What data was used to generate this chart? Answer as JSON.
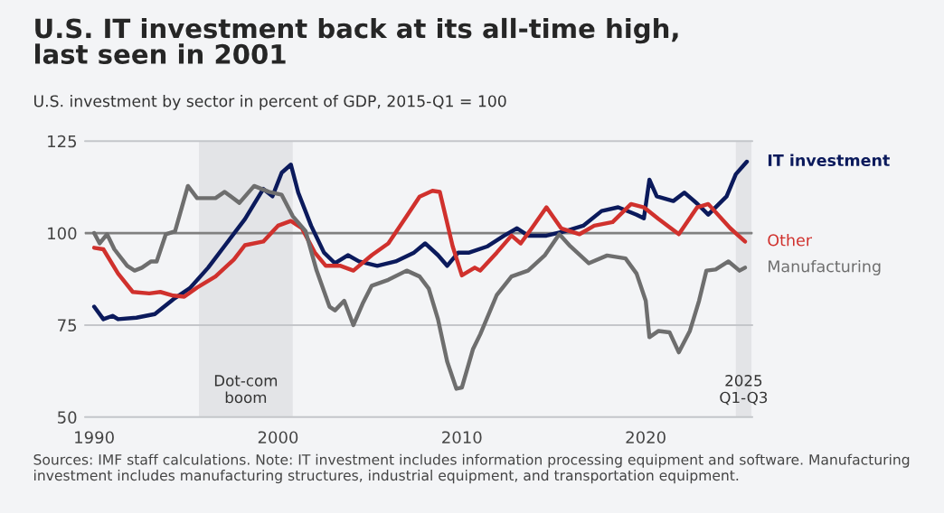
{
  "chart_data": {
    "type": "line",
    "title": "U.S. IT investment back at its all-time high,\nlast seen in 2001",
    "subtitle": "U.S. investment by sector in percent of GDP, 2015-Q1 = 100",
    "series": [
      {
        "name": "IT investment",
        "color": "#0b1a5c",
        "x": [
          1990,
          1990.5,
          1991,
          1991.3,
          1992.3,
          1993.3,
          1994.3,
          1995.2,
          1996.2,
          1997.2,
          1998.2,
          1999.2,
          1999.7,
          2000.2,
          2000.7,
          2001.1,
          2001.8,
          2002.5,
          2003.1,
          2003.8,
          2004.4,
          2005.4,
          2006.4,
          2007.4,
          2008,
          2008.7,
          2009.2,
          2009.8,
          2010.4,
          2011.4,
          2012.3,
          2013,
          2013.6,
          2014.6,
          2015.6,
          2016.6,
          2017.6,
          2018.5,
          2019.5,
          2019.9,
          2020.2,
          2020.6,
          2021.5,
          2022.1,
          2022.8,
          2023.4,
          2024.4,
          2024.9,
          2025.5
        ],
        "values": [
          80,
          76.6,
          77.5,
          76.6,
          77,
          78,
          82,
          85,
          90.6,
          97.2,
          103.8,
          112,
          110,
          116.4,
          118.6,
          111,
          102,
          94.7,
          91.8,
          94,
          92.3,
          91.1,
          92.3,
          94.7,
          97.2,
          94,
          91.1,
          94.7,
          94.7,
          96.4,
          99.3,
          101.3,
          99.3,
          99.3,
          100.5,
          102,
          106,
          107,
          105,
          104,
          114.5,
          110,
          108.7,
          111,
          108,
          105,
          110,
          116,
          119.4
        ]
      },
      {
        "name": "Other",
        "color": "#d0312d",
        "x": [
          1990,
          1990.5,
          1991.3,
          1992.1,
          1993,
          1993.6,
          1994.3,
          1994.9,
          1995.6,
          1996.6,
          1997.6,
          1998.2,
          1999.2,
          2000,
          2000.7,
          2001.3,
          2002,
          2002.6,
          2003.4,
          2004.1,
          2005.1,
          2006,
          2007,
          2007.7,
          2008.4,
          2008.8,
          2009.5,
          2010,
          2010.7,
          2011,
          2011.9,
          2012.7,
          2013.2,
          2013.8,
          2014.6,
          2015.4,
          2016.4,
          2017.2,
          2018.2,
          2019.2,
          2019.9,
          2020.7,
          2021.8,
          2022.8,
          2023.4,
          2024.6,
          2025.4
        ],
        "values": [
          96,
          95.6,
          89,
          84,
          83.6,
          84,
          83,
          82.7,
          85.2,
          88.2,
          92.8,
          96.7,
          97.7,
          102,
          103.3,
          101.3,
          94.7,
          91.1,
          91.1,
          89.8,
          94,
          97.2,
          104.6,
          109.9,
          111.5,
          111.2,
          96.4,
          88.5,
          90.6,
          89.8,
          94.7,
          99.3,
          97.2,
          101.3,
          107,
          101.3,
          99.7,
          102,
          103,
          107.9,
          107,
          103.8,
          99.7,
          107,
          107.9,
          101.3,
          97.7
        ]
      },
      {
        "name": "Manufacturing",
        "color": "#6e6e6e",
        "x": [
          1990,
          1990.3,
          1990.7,
          1991.1,
          1991.8,
          1992.2,
          1992.6,
          1993.1,
          1993.4,
          1993.9,
          1994.4,
          1995.1,
          1995.6,
          1996.6,
          1997.1,
          1997.9,
          1998.7,
          1999.5,
          2000.2,
          2000.8,
          2001.5,
          2002.1,
          2002.8,
          2003.1,
          2003.6,
          2004.1,
          2004.6,
          2005.1,
          2006,
          2007,
          2007.7,
          2008.2,
          2008.7,
          2009.2,
          2009.7,
          2010,
          2010.6,
          2011,
          2011.9,
          2012.7,
          2013.6,
          2014.5,
          2015.3,
          2015.9,
          2016.9,
          2017.9,
          2018.9,
          2019.5,
          2020,
          2020.2,
          2020.7,
          2021.3,
          2021.8,
          2022.4,
          2022.9,
          2023.3,
          2023.8,
          2024.5,
          2025.1,
          2025.4
        ],
        "values": [
          100,
          97.2,
          99.7,
          95.6,
          91.1,
          89.8,
          90.6,
          92.3,
          92.3,
          99.7,
          100.5,
          112.8,
          109.5,
          109.5,
          111.2,
          108.2,
          112.8,
          111.2,
          110.4,
          104.6,
          100.5,
          89.8,
          80,
          79,
          81.6,
          75,
          80.8,
          85.7,
          87.3,
          89.8,
          88.2,
          84.9,
          76.6,
          65.1,
          57.7,
          58,
          68.4,
          72.5,
          83.2,
          88.2,
          89.8,
          93.9,
          99.7,
          96.4,
          91.8,
          93.9,
          93.1,
          89,
          81.6,
          71.7,
          73.4,
          73,
          67.6,
          73.4,
          81.6,
          89.8,
          90.1,
          92.3,
          89.8,
          90.6
        ]
      }
    ],
    "xlim": [
      1989.5,
      2025.8
    ],
    "xticks": [
      1990,
      2000,
      2010,
      2020
    ],
    "ylim": [
      50,
      125
    ],
    "yticks": [
      50,
      75,
      100,
      125
    ],
    "grid": "y",
    "legend": false,
    "ref_lines": [
      {
        "axis": "y",
        "value": 100,
        "color": "#808080"
      }
    ],
    "bands": [
      {
        "axis": "x",
        "from": 1995.7,
        "to": 2000.8,
        "label": "Dot-com\nboom",
        "color": "#e3e4e7"
      },
      {
        "axis": "x",
        "from": 2024.9,
        "to": 2025.75,
        "label": "2025\nQ1-Q3",
        "color": "#e3e4e7"
      }
    ],
    "annotations": [
      "Sources: IMF staff calculations. Note: IT investment includes information processing equipment and software. Manufacturing investment includes manufacturing structures, industrial equipment, and transportation equipment."
    ]
  }
}
